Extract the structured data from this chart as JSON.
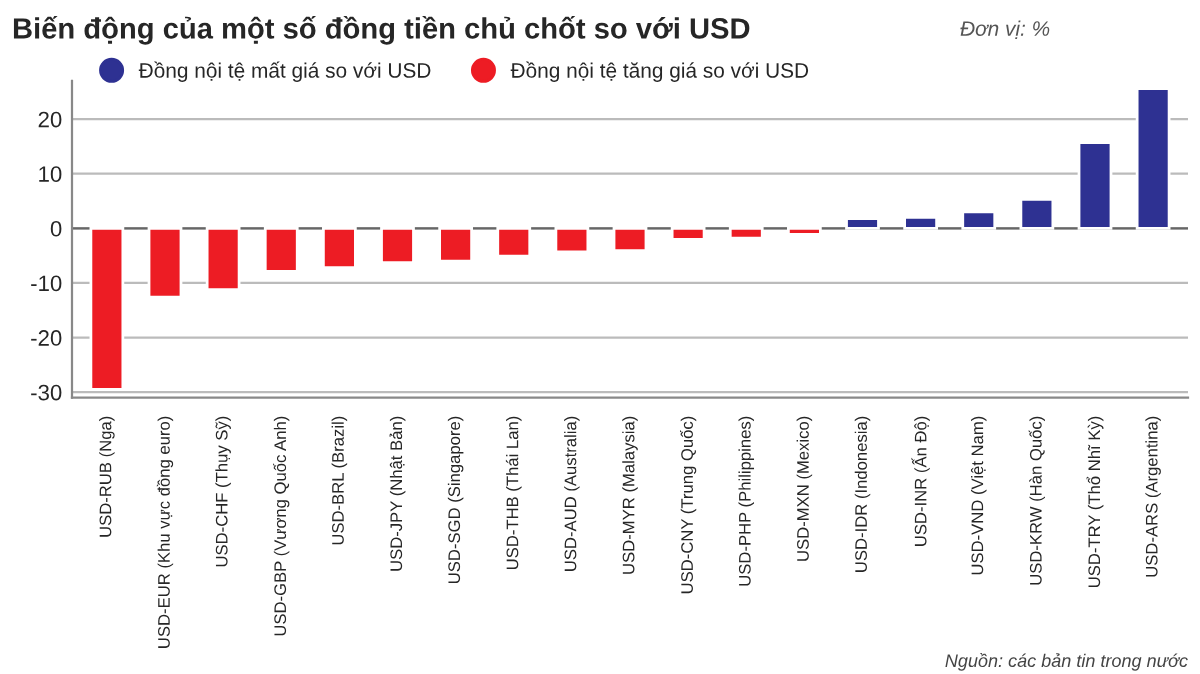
{
  "chart_data": {
    "type": "bar",
    "title": "Biến động của một số đồng tiền chủ chốt so với USD",
    "subtitle": "Đơn vị: %",
    "categories": [
      "USD-RUB (Nga)",
      "USD-EUR (Khu vực đồng euro)",
      "USD-CHF (Thụy Sỹ)",
      "USD-GBP (Vương Quốc Anh)",
      "USD-BRL (Brazil)",
      "USD-JPY (Nhật Bản)",
      "USD-SGD (Singapore)",
      "USD-THB (Thái Lan)",
      "USD-AUD (Australia)",
      "USD-MYR (Malaysia)",
      "USD-CNY (Trung Quốc)",
      "USD-PHP (Philippines)",
      "USD-MXN (Mexico)",
      "USD-IDR (Indonesia)",
      "USD-INR (Ấn Độ)",
      "USD-VND (Việt Nam)",
      "USD-KRW (Hàn Quốc)",
      "USD-TRY (Thổ Nhĩ Kỳ)",
      "USD-ARS (Argentina)"
    ],
    "series": [
      {
        "name": "Đồng nội tệ mất giá so với USD",
        "color": "#2e3192",
        "values": [
          null,
          null,
          null,
          null,
          null,
          null,
          null,
          null,
          null,
          null,
          null,
          null,
          null,
          1.8,
          2.0,
          3.0,
          5.3,
          15.7,
          25.6
        ]
      },
      {
        "name": "Đồng nội tệ tăng giá so với USD",
        "color": "#ed1c24",
        "values": [
          -29.5,
          -12.6,
          -11.2,
          -7.9,
          -7.2,
          -6.3,
          -6.0,
          -5.1,
          -4.3,
          -4.1,
          -2.0,
          -1.8,
          -1.1,
          null,
          null,
          null,
          null,
          null,
          null
        ]
      }
    ],
    "ylim": [
      -31,
      27
    ],
    "yticks": [
      -30,
      -20,
      -10,
      0,
      10,
      20
    ],
    "grid": "y",
    "legend": "top left",
    "annotations": [
      "Nguồn: các bản tin trong nước"
    ]
  }
}
